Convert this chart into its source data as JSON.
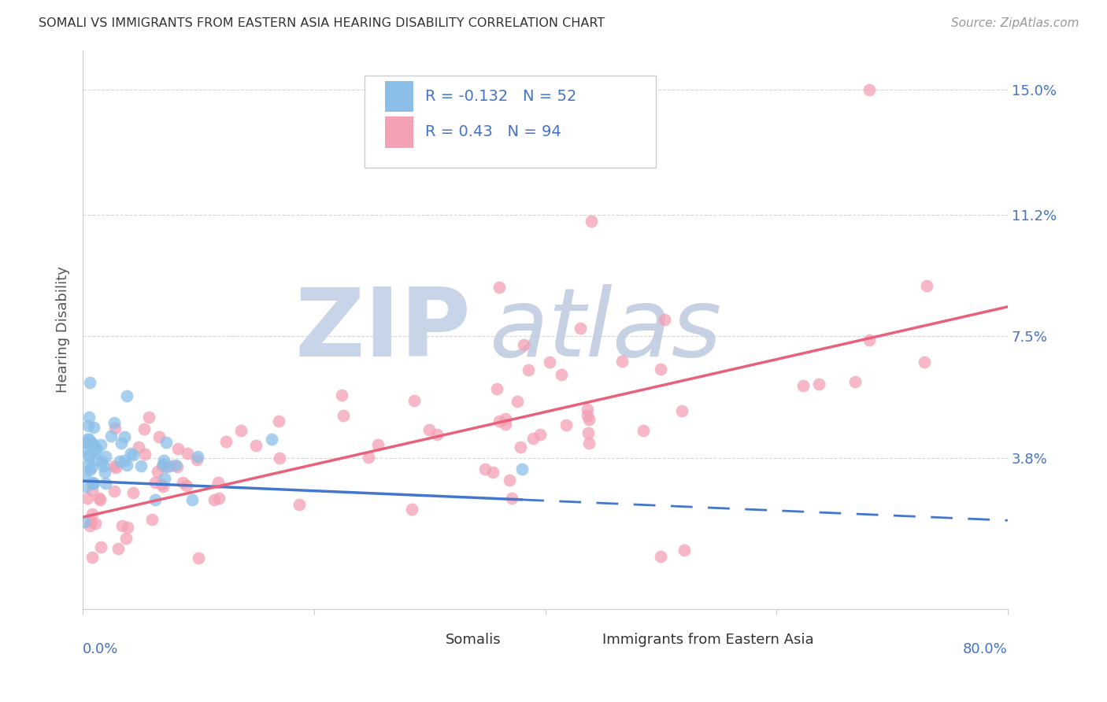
{
  "title": "SOMALI VS IMMIGRANTS FROM EASTERN ASIA HEARING DISABILITY CORRELATION CHART",
  "source": "Source: ZipAtlas.com",
  "ylabel": "Hearing Disability",
  "legend_label_1": "Somalis",
  "legend_label_2": "Immigrants from Eastern Asia",
  "ytick_values": [
    0.038,
    0.075,
    0.112,
    0.15
  ],
  "ytick_labels": [
    "3.8%",
    "7.5%",
    "11.2%",
    "15.0%"
  ],
  "xlim": [
    0.0,
    0.8
  ],
  "ylim": [
    -0.008,
    0.162
  ],
  "somali_R": -0.132,
  "somali_N": 52,
  "eastern_asia_R": 0.43,
  "eastern_asia_N": 94,
  "somali_color": "#8BBFE8",
  "eastern_asia_color": "#F4A0B5",
  "somali_line_color": "#4477CC",
  "eastern_asia_line_color": "#E8607A",
  "watermark_zip_color": "#C8D4E8",
  "watermark_atlas_color": "#C0CCE0",
  "grid_color": "#CCCCCC",
  "border_color": "#CCCCCC",
  "title_color": "#333333",
  "source_color": "#999999",
  "ylabel_color": "#555555",
  "tick_label_color": "#4472C4",
  "legend_border_color": "#CCCCCC"
}
